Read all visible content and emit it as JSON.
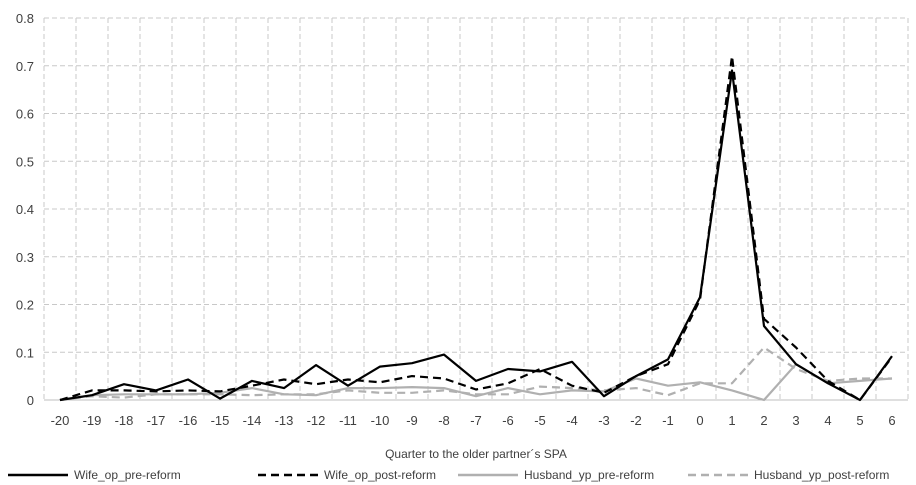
{
  "chart_data": {
    "type": "line",
    "title": "",
    "xlabel": "Quarter to the older partner´s SPA",
    "ylabel": "",
    "categories": [
      "-20",
      "-19",
      "-18",
      "-17",
      "-16",
      "-15",
      "-14",
      "-13",
      "-12",
      "-11",
      "-10",
      "-9",
      "-8",
      "-7",
      "-6",
      "-5",
      "-4",
      "-3",
      "-2",
      "-1",
      "0",
      "1",
      "2",
      "3",
      "4",
      "5",
      "6"
    ],
    "ylim": [
      0,
      0.8
    ],
    "yticks": [
      "0",
      "0.1",
      "0.2",
      "0.3",
      "0.4",
      "0.5",
      "0.6",
      "0.7",
      "0.8"
    ],
    "grid": true,
    "legend_position": "bottom",
    "series": [
      {
        "name": "Wife_op_pre-reform",
        "color": "#000000",
        "dash": "solid",
        "values": [
          0.0,
          0.01,
          0.033,
          0.02,
          0.043,
          0.003,
          0.04,
          0.025,
          0.073,
          0.03,
          0.07,
          0.077,
          0.095,
          0.04,
          0.065,
          0.06,
          0.08,
          0.008,
          0.05,
          0.085,
          0.215,
          0.69,
          0.155,
          0.075,
          0.035,
          0.0,
          0.092
        ]
      },
      {
        "name": "Wife_op_post-reform",
        "color": "#000000",
        "dash": "dashed",
        "values": [
          0.0,
          0.02,
          0.02,
          0.018,
          0.02,
          0.018,
          0.03,
          0.043,
          0.033,
          0.043,
          0.037,
          0.05,
          0.045,
          0.022,
          0.035,
          0.065,
          0.03,
          0.015,
          0.05,
          0.075,
          0.21,
          0.72,
          0.17,
          0.11,
          0.04,
          0.0,
          0.09
        ]
      },
      {
        "name": "Husband_yp_pre-reform",
        "color": "#b0b0b0",
        "dash": "solid",
        "values": [
          0.0,
          0.01,
          0.012,
          0.012,
          0.012,
          0.015,
          0.025,
          0.012,
          0.01,
          0.025,
          0.025,
          0.027,
          0.025,
          0.008,
          0.025,
          0.012,
          0.02,
          0.018,
          0.045,
          0.03,
          0.037,
          0.02,
          0.0,
          0.075,
          0.035,
          0.04,
          0.045
        ]
      },
      {
        "name": "Husband_yp_post-reform",
        "color": "#b0b0b0",
        "dash": "dashed",
        "values": [
          0.0,
          0.008,
          0.005,
          0.012,
          0.012,
          0.012,
          0.01,
          0.012,
          0.012,
          0.02,
          0.015,
          0.015,
          0.02,
          0.012,
          0.012,
          0.028,
          0.025,
          0.02,
          0.025,
          0.01,
          0.035,
          0.035,
          0.11,
          0.065,
          0.04,
          0.045,
          0.045
        ]
      }
    ]
  }
}
